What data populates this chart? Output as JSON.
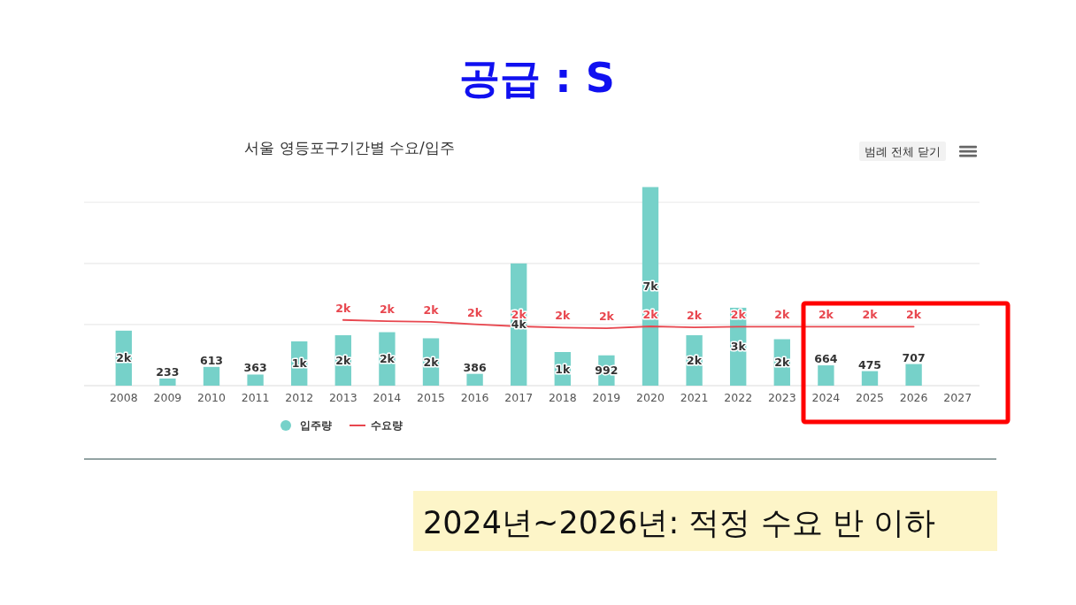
{
  "chart_data": {
    "type": "bar",
    "title": "공급 : S",
    "subtitle": "서울 영등포구기간별 수요/입주",
    "categories": [
      "2008",
      "2009",
      "2010",
      "2011",
      "2012",
      "2013",
      "2014",
      "2015",
      "2016",
      "2017",
      "2018",
      "2019",
      "2020",
      "2021",
      "2022",
      "2023",
      "2024",
      "2025",
      "2026",
      "2027"
    ],
    "series": [
      {
        "name": "입주량",
        "color": "#76d1c9",
        "values": [
          1800,
          233,
          613,
          363,
          1450,
          1650,
          1750,
          1550,
          386,
          4000,
          1100,
          992,
          6500,
          1650,
          2550,
          1520,
          664,
          475,
          707,
          null
        ],
        "value_labels": [
          "2k",
          "233",
          "613",
          "363",
          "1k",
          "2k",
          "2k",
          "2k",
          "386",
          "4k",
          "1k",
          "992",
          "7k",
          "2k",
          "3k",
          "2k",
          "664",
          "475",
          "707",
          null
        ]
      },
      {
        "name": "수요량",
        "type": "line",
        "color": "#e8474f",
        "values": [
          null,
          null,
          null,
          null,
          null,
          2150,
          2110,
          2090,
          2010,
          1940,
          1900,
          1880,
          1940,
          1910,
          1930,
          1930,
          1930,
          1930,
          1930,
          null
        ],
        "value_labels": [
          null,
          null,
          null,
          null,
          null,
          "2k",
          "2k",
          "2k",
          "2k",
          "2k",
          "2k",
          "2k",
          "2k",
          "2k",
          "2k",
          "2k",
          "2k",
          "2k",
          "2k",
          null
        ]
      }
    ],
    "yticks": [
      {
        "value": 0,
        "label": null
      },
      {
        "value": 2000,
        "label": null
      },
      {
        "value": 4000,
        "label": null
      },
      {
        "value": 6000,
        "label": null
      }
    ],
    "tick_labels": "x",
    "grid": "y",
    "legend": "bottom",
    "marker": "none",
    "line_style": "solid",
    "annotations": [
      "범례 전체 닫기",
      "2024년~2026년: 적정 수요 반 이하"
    ]
  }
}
